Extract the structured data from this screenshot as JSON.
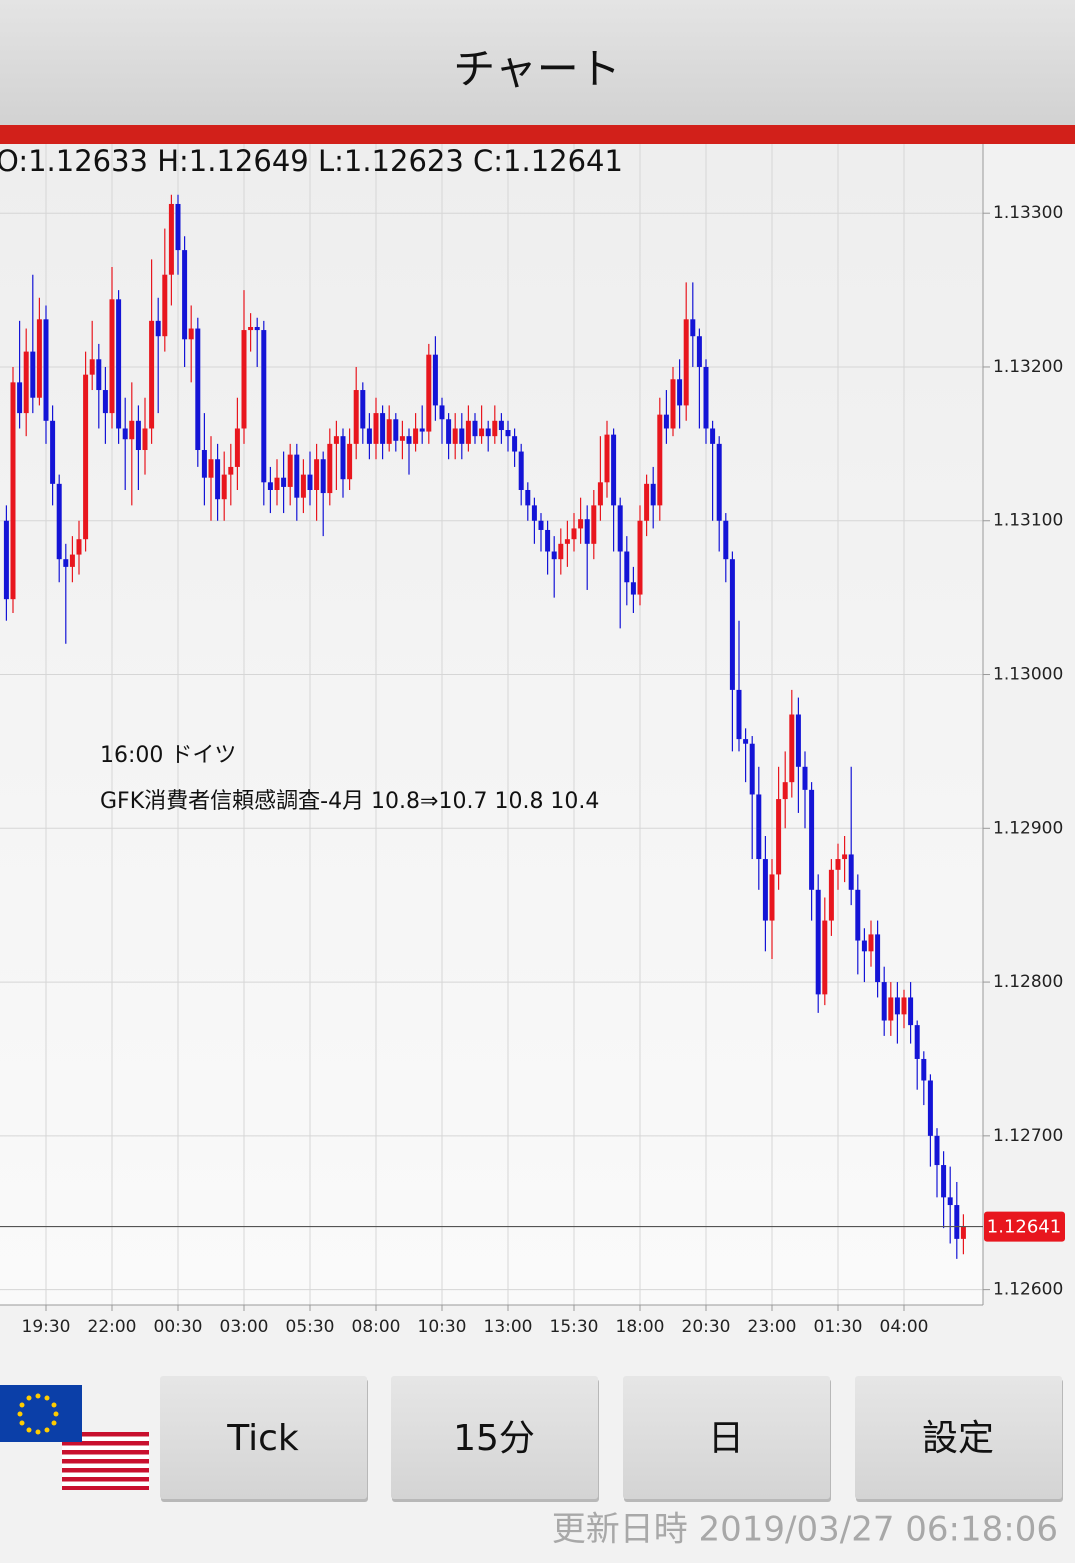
{
  "header": {
    "title": "チャート"
  },
  "chart_data": {
    "type": "candlestick",
    "ohlc_text": "O:1.12633 H:1.12649 L:1.12623 C:1.12641",
    "annotations": [
      "16:00 ドイツ",
      "GFK消費者信頼感調査-4月 10.8⇒10.7 10.8 10.4"
    ],
    "categories": [
      null,
      null,
      null,
      null,
      null,
      null,
      "19:30",
      null,
      null,
      null,
      null,
      null,
      null,
      null,
      null,
      null,
      "22:00",
      null,
      null,
      null,
      null,
      null,
      null,
      null,
      null,
      null,
      "00:30",
      null,
      null,
      null,
      null,
      null,
      null,
      null,
      null,
      null,
      "03:00",
      null,
      null,
      null,
      null,
      null,
      null,
      null,
      null,
      null,
      "05:30",
      null,
      null,
      null,
      null,
      null,
      null,
      null,
      null,
      null,
      "08:00",
      null,
      null,
      null,
      null,
      null,
      null,
      null,
      null,
      null,
      "10:30",
      null,
      null,
      null,
      null,
      null,
      null,
      null,
      null,
      null,
      "13:00",
      null,
      null,
      null,
      null,
      null,
      null,
      null,
      null,
      null,
      "15:30",
      null,
      null,
      null,
      null,
      null,
      null,
      null,
      null,
      null,
      "18:00",
      null,
      null,
      null,
      null,
      null,
      null,
      null,
      null,
      null,
      "20:30",
      null,
      null,
      null,
      null,
      null,
      null,
      null,
      null,
      null,
      "23:00",
      null,
      null,
      null,
      null,
      null,
      null,
      null,
      null,
      null,
      "01:30",
      null,
      null,
      null,
      null,
      null,
      null,
      null,
      null,
      null,
      "04:00",
      null,
      null,
      null,
      null,
      null,
      null,
      null,
      null,
      null
    ],
    "open": [
      1.131,
      1.13049,
      1.1319,
      1.1317,
      1.1321,
      1.1318,
      1.13231,
      1.13165,
      1.13124,
      1.13075,
      1.1307,
      1.13078,
      1.13088,
      1.13195,
      1.13205,
      1.13185,
      1.1317,
      1.13244,
      1.1316,
      1.13153,
      1.13165,
      1.13146,
      1.1316,
      1.1323,
      1.1322,
      1.1326,
      1.13306,
      1.13276,
      1.13218,
      1.13225,
      1.13146,
      1.13128,
      1.1314,
      1.13114,
      1.1313,
      1.13135,
      1.1316,
      1.13224,
      1.13226,
      1.13224,
      1.13125,
      1.1312,
      1.13128,
      1.13122,
      1.13143,
      1.13115,
      1.1313,
      1.1312,
      1.1314,
      1.13118,
      1.1315,
      1.13155,
      1.13127,
      1.1315,
      1.13185,
      1.1316,
      1.1315,
      1.1317,
      1.1315,
      1.13166,
      1.13152,
      1.13155,
      1.1315,
      1.1316,
      1.13158,
      1.13208,
      1.13175,
      1.13166,
      1.1315,
      1.1316,
      1.1315,
      1.13165,
      1.13155,
      1.1316,
      1.13155,
      1.13165,
      1.13159,
      1.13155,
      1.13145,
      1.1312,
      1.1311,
      1.131,
      1.13094,
      1.1308,
      1.13075,
      1.13085,
      1.13088,
      1.13095,
      1.13101,
      1.13085,
      1.1311,
      1.13125,
      1.13156,
      1.1311,
      1.1308,
      1.1306,
      1.13052,
      1.131,
      1.13124,
      1.1311,
      1.13169,
      1.1316,
      1.13192,
      1.13175,
      1.13231,
      1.1322,
      1.132,
      1.1316,
      1.1315,
      1.131,
      1.13075,
      1.1299,
      1.12958,
      1.12955,
      1.12922,
      1.1288,
      1.1284,
      1.1287,
      1.12919,
      1.1293,
      1.12974,
      1.1294,
      1.12925,
      1.1286,
      1.12792,
      1.1284,
      1.12873,
      1.1288,
      1.12883,
      1.1286,
      1.12827,
      1.1282,
      1.12831,
      1.128,
      1.12775,
      1.1279,
      1.12779,
      1.1279,
      1.12772,
      1.1275,
      1.12736,
      1.127,
      1.12681,
      1.1266,
      1.12655,
      1.12633
    ],
    "high": [
      1.1311,
      1.132,
      1.1323,
      1.13225,
      1.1326,
      1.13245,
      1.1324,
      1.13175,
      1.1313,
      1.13085,
      1.1309,
      1.131,
      1.1321,
      1.1323,
      1.13215,
      1.132,
      1.13265,
      1.1325,
      1.1318,
      1.1319,
      1.13175,
      1.1318,
      1.1327,
      1.13245,
      1.1329,
      1.13312,
      1.13312,
      1.13285,
      1.1324,
      1.13232,
      1.1317,
      1.13155,
      1.1315,
      1.13145,
      1.1315,
      1.1318,
      1.1325,
      1.13235,
      1.13232,
      1.1323,
      1.13135,
      1.1314,
      1.13145,
      1.1315,
      1.1315,
      1.1314,
      1.13145,
      1.1315,
      1.13145,
      1.1316,
      1.13165,
      1.1316,
      1.1316,
      1.132,
      1.1319,
      1.1317,
      1.1318,
      1.13175,
      1.13175,
      1.1317,
      1.13165,
      1.1316,
      1.1317,
      1.13175,
      1.13215,
      1.1322,
      1.1318,
      1.1317,
      1.1317,
      1.1317,
      1.13175,
      1.1317,
      1.13175,
      1.13165,
      1.13175,
      1.1317,
      1.13165,
      1.1316,
      1.1315,
      1.13125,
      1.13115,
      1.13105,
      1.131,
      1.1309,
      1.13095,
      1.131,
      1.13105,
      1.13115,
      1.1311,
      1.1312,
      1.13155,
      1.13165,
      1.1316,
      1.13115,
      1.1309,
      1.1307,
      1.1311,
      1.1313,
      1.13135,
      1.1318,
      1.13185,
      1.132,
      1.13205,
      1.13255,
      1.13255,
      1.13225,
      1.13205,
      1.13165,
      1.13155,
      1.13105,
      1.1308,
      1.13035,
      1.12965,
      1.1296,
      1.1294,
      1.12895,
      1.1288,
      1.1294,
      1.1295,
      1.1299,
      1.12985,
      1.1295,
      1.1293,
      1.1287,
      1.12855,
      1.1288,
      1.1289,
      1.12895,
      1.1294,
      1.1287,
      1.12835,
      1.1284,
      1.1284,
      1.1281,
      1.128,
      1.128,
      1.12795,
      1.128,
      1.12775,
      1.12755,
      1.1274,
      1.12705,
      1.1269,
      1.1268,
      1.1267,
      1.12649
    ],
    "low": [
      1.13035,
      1.1304,
      1.1316,
      1.13155,
      1.1317,
      1.13175,
      1.1315,
      1.1311,
      1.1306,
      1.1302,
      1.1306,
      1.13065,
      1.1308,
      1.13185,
      1.1316,
      1.1315,
      1.1316,
      1.1315,
      1.1312,
      1.1311,
      1.1312,
      1.1313,
      1.1315,
      1.1317,
      1.1321,
      1.1324,
      1.1326,
      1.132,
      1.1319,
      1.13135,
      1.1311,
      1.131,
      1.131,
      1.131,
      1.1311,
      1.1312,
      1.1315,
      1.1321,
      1.132,
      1.1311,
      1.13105,
      1.1311,
      1.13105,
      1.1311,
      1.131,
      1.13105,
      1.1311,
      1.131,
      1.1309,
      1.1311,
      1.1312,
      1.13115,
      1.1312,
      1.1314,
      1.1315,
      1.1314,
      1.1314,
      1.1314,
      1.13145,
      1.13145,
      1.1314,
      1.1313,
      1.13145,
      1.1315,
      1.1315,
      1.13165,
      1.1315,
      1.1314,
      1.1314,
      1.1314,
      1.13145,
      1.1315,
      1.1315,
      1.13145,
      1.1315,
      1.1315,
      1.13145,
      1.13135,
      1.1311,
      1.131,
      1.13085,
      1.1308,
      1.13065,
      1.1305,
      1.13065,
      1.1307,
      1.1308,
      1.13085,
      1.13055,
      1.13075,
      1.131,
      1.13115,
      1.1308,
      1.1303,
      1.13045,
      1.1304,
      1.13045,
      1.1309,
      1.13095,
      1.131,
      1.1315,
      1.13155,
      1.1316,
      1.13165,
      1.132,
      1.1316,
      1.1315,
      1.131,
      1.1308,
      1.1306,
      1.1295,
      1.1295,
      1.1293,
      1.1288,
      1.1286,
      1.1282,
      1.12815,
      1.1286,
      1.129,
      1.1292,
      1.1291,
      1.129,
      1.1284,
      1.1278,
      1.12785,
      1.1283,
      1.1286,
      1.12865,
      1.1285,
      1.12805,
      1.128,
      1.1281,
      1.1279,
      1.12765,
      1.12765,
      1.1276,
      1.1277,
      1.1276,
      1.1273,
      1.1272,
      1.1268,
      1.1266,
      1.1264,
      1.1263,
      1.1262,
      1.12623
    ],
    "close": [
      1.13049,
      1.1319,
      1.1317,
      1.1321,
      1.1318,
      1.13231,
      1.13165,
      1.13124,
      1.13075,
      1.1307,
      1.13078,
      1.13088,
      1.13195,
      1.13205,
      1.13185,
      1.1317,
      1.13244,
      1.1316,
      1.13153,
      1.13165,
      1.13146,
      1.1316,
      1.1323,
      1.1322,
      1.1326,
      1.13306,
      1.13276,
      1.13218,
      1.13225,
      1.13146,
      1.13128,
      1.1314,
      1.13114,
      1.1313,
      1.13135,
      1.1316,
      1.13224,
      1.13226,
      1.13224,
      1.13125,
      1.1312,
      1.13128,
      1.13122,
      1.13143,
      1.13115,
      1.1313,
      1.1312,
      1.1314,
      1.13118,
      1.1315,
      1.13155,
      1.13127,
      1.1315,
      1.13185,
      1.1316,
      1.1315,
      1.1317,
      1.1315,
      1.13166,
      1.13152,
      1.13155,
      1.1315,
      1.1316,
      1.13158,
      1.13208,
      1.13175,
      1.13166,
      1.1315,
      1.1316,
      1.1315,
      1.13165,
      1.13155,
      1.1316,
      1.13155,
      1.13165,
      1.13159,
      1.13155,
      1.13145,
      1.1312,
      1.1311,
      1.131,
      1.13094,
      1.1308,
      1.13075,
      1.13085,
      1.13088,
      1.13095,
      1.13101,
      1.13085,
      1.1311,
      1.13125,
      1.13156,
      1.1311,
      1.1308,
      1.1306,
      1.13052,
      1.131,
      1.13124,
      1.1311,
      1.13169,
      1.1316,
      1.13192,
      1.13175,
      1.13231,
      1.1322,
      1.132,
      1.1316,
      1.1315,
      1.131,
      1.13075,
      1.1299,
      1.12958,
      1.12955,
      1.12922,
      1.1288,
      1.1284,
      1.1287,
      1.12919,
      1.1293,
      1.12974,
      1.1294,
      1.12925,
      1.1286,
      1.12792,
      1.1284,
      1.12873,
      1.1288,
      1.12883,
      1.1286,
      1.12827,
      1.1282,
      1.12831,
      1.128,
      1.12775,
      1.1279,
      1.12779,
      1.1279,
      1.12772,
      1.1275,
      1.12736,
      1.127,
      1.12681,
      1.1266,
      1.12655,
      1.12633,
      1.12641
    ],
    "colors": {
      "up": "#e8161e",
      "down": "#1414d6"
    },
    "last_price": 1.12641,
    "ylim": [
      1.1259,
      1.13345
    ],
    "yticks": [
      {
        "value": 1.133,
        "label": "1.13300"
      },
      {
        "value": 1.132,
        "label": "1.13200"
      },
      {
        "value": 1.131,
        "label": "1.13100"
      },
      {
        "value": 1.13,
        "label": "1.13000"
      },
      {
        "value": 1.129,
        "label": "1.12900"
      },
      {
        "value": 1.128,
        "label": "1.12800"
      },
      {
        "value": 1.127,
        "label": "1.12700"
      },
      {
        "value": 1.126,
        "label": "1.12600"
      }
    ],
    "grid": true
  },
  "buttons": [
    "Tick",
    "15分",
    "日",
    "設定"
  ],
  "footer": {
    "updated": "更新日時 2019/03/27 06:18:06"
  }
}
